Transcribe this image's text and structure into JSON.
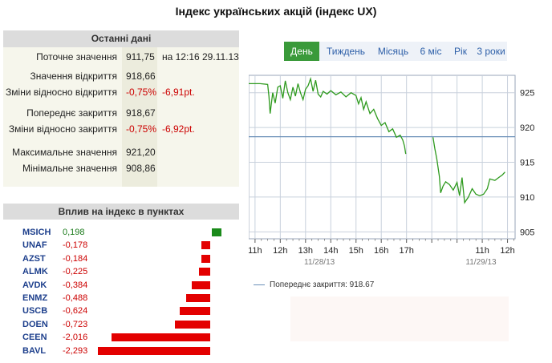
{
  "page": {
    "title": "Індекс українських акцій (індекс UX)"
  },
  "summary": {
    "header": "Останні дані",
    "current_label": "Поточне значення",
    "current_value": "911,75",
    "current_time": "на 12:16 29.11.13",
    "open_label": "Значення відкриття",
    "open_value": "918,66",
    "change_open_label": "Зміни відносно відкриття",
    "change_open_pct": "-0,75%",
    "change_open_pt": "-6,91pt.",
    "prev_close_label": "Попереднє закриття",
    "prev_close_value": "918,67",
    "change_close_label": "Зміни відносно закриття",
    "change_close_pct": "-0,75%",
    "change_close_pt": "-6,92pt.",
    "max_label": "Максимальне значення",
    "max_value": "921,20",
    "min_label": "Мінімальне значення",
    "min_value": "908,86"
  },
  "influence": {
    "header": "Вплив на індекс в пунктах",
    "colors": {
      "positive": "#1a8a1a",
      "negative": "#e30000"
    },
    "items": [
      {
        "ticker": "MSICH",
        "value": "0,198",
        "amount": 0.198
      },
      {
        "ticker": "UNAF",
        "value": "-0,178",
        "amount": -0.178
      },
      {
        "ticker": "AZST",
        "value": "-0,184",
        "amount": -0.184
      },
      {
        "ticker": "ALMK",
        "value": "-0,225",
        "amount": -0.225
      },
      {
        "ticker": "AVDK",
        "value": "-0,384",
        "amount": -0.384
      },
      {
        "ticker": "ENMZ",
        "value": "-0,488",
        "amount": -0.488
      },
      {
        "ticker": "USCB",
        "value": "-0,624",
        "amount": -0.624
      },
      {
        "ticker": "DOEN",
        "value": "-0,723",
        "amount": -0.723
      },
      {
        "ticker": "CEEN",
        "value": "-2,016",
        "amount": -2.016
      },
      {
        "ticker": "BAVL",
        "value": "-2,293",
        "amount": -2.293
      }
    ]
  },
  "tabs": {
    "active": "day",
    "items": [
      {
        "id": "day",
        "label": "День"
      },
      {
        "id": "week",
        "label": "Тиждень"
      },
      {
        "id": "month",
        "label": "Місяць"
      },
      {
        "id": "6m",
        "label": "6 міс"
      },
      {
        "id": "year",
        "label": "Рік"
      },
      {
        "id": "3y",
        "label": "3 роки"
      }
    ]
  },
  "legend": {
    "prev_close_text": "Попереднє закриття:  918.67"
  },
  "chart_data": {
    "type": "line",
    "title": "",
    "xlabel": "",
    "ylabel": "",
    "colors": {
      "series": "#2e9a1e",
      "prev_close": "#6b8fb8",
      "grid": "#c8d0dc"
    },
    "ylim": [
      904,
      927.5
    ],
    "y_ticks": [
      905,
      910,
      915,
      920,
      925
    ],
    "y_tick_labels": [
      "905",
      "910",
      "915",
      "920",
      "925"
    ],
    "x_ticks": [
      11,
      12,
      13,
      14,
      15,
      16,
      17,
      18,
      19,
      20,
      21
    ],
    "x_tick_labels": [
      "11h",
      "12h",
      "13h",
      "14h",
      "15h",
      "16h",
      "17h",
      "",
      "",
      "11h",
      "12h"
    ],
    "xlim": [
      10.75,
      21.3
    ],
    "date_labels": [
      {
        "x": 13.55,
        "text": "11/28/13"
      },
      {
        "x": 19.95,
        "text": "11/29/13"
      }
    ],
    "reference_line": {
      "name": "Попереднє закриття",
      "value": 918.67
    },
    "series": [
      {
        "segments": [
          [
            [
              10.75,
              926.3
            ],
            [
              11.2,
              926.3
            ],
            [
              11.5,
              926.2
            ],
            [
              11.55,
              924.5
            ],
            [
              11.6,
              922.0
            ],
            [
              11.7,
              925.0
            ],
            [
              11.8,
              923.5
            ],
            [
              11.9,
              925.8
            ],
            [
              12.0,
              926.0
            ],
            [
              12.1,
              924.2
            ],
            [
              12.2,
              926.7
            ],
            [
              12.3,
              925.0
            ],
            [
              12.4,
              924.0
            ],
            [
              12.5,
              925.8
            ],
            [
              12.6,
              924.5
            ],
            [
              12.7,
              926.3
            ],
            [
              12.8,
              925.0
            ],
            [
              12.9,
              924.0
            ],
            [
              13.0,
              925.5
            ],
            [
              13.1,
              926.0
            ],
            [
              13.2,
              927.0
            ],
            [
              13.3,
              925.2
            ],
            [
              13.4,
              926.8
            ],
            [
              13.5,
              924.8
            ],
            [
              13.6,
              924.4
            ],
            [
              13.7,
              925.2
            ],
            [
              13.85,
              924.8
            ],
            [
              14.0,
              925.3
            ],
            [
              14.2,
              924.7
            ],
            [
              14.4,
              925.1
            ],
            [
              14.6,
              924.4
            ],
            [
              14.8,
              925.0
            ],
            [
              15.0,
              924.6
            ],
            [
              15.1,
              923.4
            ],
            [
              15.2,
              924.3
            ],
            [
              15.3,
              922.6
            ],
            [
              15.4,
              923.7
            ],
            [
              15.55,
              922.0
            ],
            [
              15.7,
              922.6
            ],
            [
              15.85,
              921.3
            ],
            [
              16.0,
              920.3
            ],
            [
              16.15,
              920.7
            ],
            [
              16.3,
              919.4
            ],
            [
              16.45,
              919.8
            ],
            [
              16.6,
              918.6
            ],
            [
              16.75,
              918.9
            ],
            [
              16.85,
              918.2
            ],
            [
              16.92,
              917.3
            ],
            [
              16.97,
              916.2
            ]
          ],
          [
            [
              18.05,
              918.6
            ],
            [
              18.12,
              917.0
            ],
            [
              18.2,
              915.5
            ],
            [
              18.3,
              913.0
            ],
            [
              18.35,
              910.6
            ],
            [
              18.45,
              911.6
            ],
            [
              18.55,
              912.2
            ],
            [
              18.7,
              911.8
            ],
            [
              18.85,
              911.0
            ],
            [
              19.0,
              912.1
            ],
            [
              19.1,
              910.2
            ],
            [
              19.2,
              912.8
            ],
            [
              19.3,
              909.2
            ],
            [
              19.45,
              910.0
            ],
            [
              19.6,
              911.2
            ],
            [
              19.75,
              910.4
            ],
            [
              19.9,
              910.2
            ],
            [
              20.05,
              910.4
            ],
            [
              20.2,
              911.2
            ],
            [
              20.3,
              912.6
            ],
            [
              20.5,
              912.4
            ],
            [
              20.65,
              912.8
            ],
            [
              20.8,
              913.2
            ],
            [
              20.9,
              913.6
            ]
          ]
        ]
      }
    ]
  }
}
